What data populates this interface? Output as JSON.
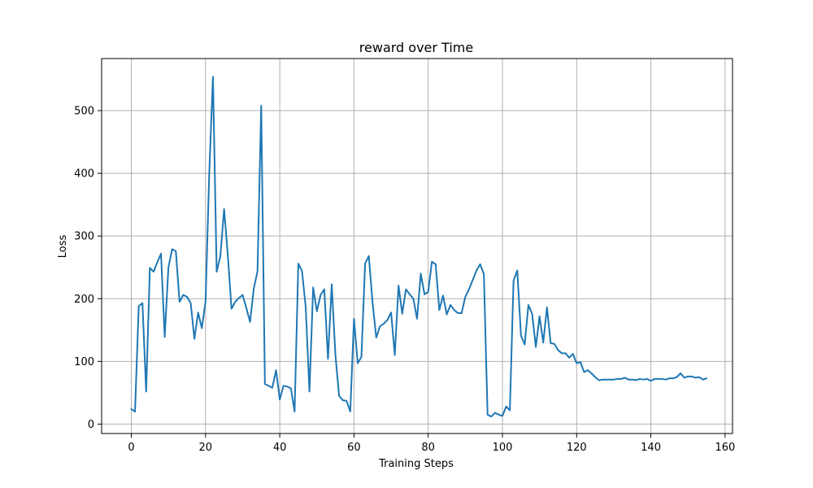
{
  "chart_data": {
    "type": "line",
    "title": "reward over Time",
    "xlabel": "Training Steps",
    "ylabel": "Loss",
    "xlim": [
      -8,
      162
    ],
    "ylim": [
      -15,
      583
    ],
    "x_ticks": [
      0,
      20,
      40,
      60,
      80,
      100,
      120,
      140,
      160
    ],
    "y_ticks": [
      0,
      100,
      200,
      300,
      400,
      500
    ],
    "grid": true,
    "legend": "none",
    "colors": {
      "line": "#1f77b4",
      "grid": "#b0b0b0",
      "axis": "#000000",
      "background": "#ffffff"
    },
    "series": [
      {
        "x": [
          0,
          1,
          2,
          3,
          4,
          5,
          6,
          7,
          8,
          9,
          10,
          11,
          12,
          13,
          14,
          15,
          16,
          17,
          18,
          19,
          20,
          21,
          22,
          23,
          24,
          25,
          26,
          27,
          28,
          29,
          30,
          31,
          32,
          33,
          34,
          35,
          36,
          37,
          38,
          39,
          40,
          41,
          42,
          43,
          44,
          45,
          46,
          47,
          48,
          49,
          50,
          51,
          52,
          53,
          54,
          55,
          56,
          57,
          58,
          59,
          60,
          61,
          62,
          63,
          64,
          65,
          66,
          67,
          68,
          69,
          70,
          71,
          72,
          73,
          74,
          75,
          76,
          77,
          78,
          79,
          80,
          81,
          82,
          83,
          84,
          85,
          86,
          87,
          88,
          89,
          90,
          91,
          92,
          93,
          94,
          95,
          96,
          97,
          98,
          99,
          100,
          101,
          102,
          103,
          104,
          105,
          106,
          107,
          108,
          109,
          110,
          111,
          112,
          113,
          114,
          115,
          116,
          117,
          118,
          119,
          120,
          121,
          122,
          123,
          124,
          125,
          126,
          127,
          128,
          129,
          130,
          131,
          132,
          133,
          134,
          135,
          136,
          137,
          138,
          139,
          140,
          141,
          142,
          143,
          144,
          145,
          146,
          147,
          148,
          149,
          150,
          151,
          152,
          153,
          154,
          155
        ],
        "values": [
          24,
          20,
          188,
          193,
          52,
          249,
          243,
          258,
          272,
          139,
          250,
          279,
          276,
          195,
          206,
          203,
          193,
          136,
          178,
          153,
          195,
          400,
          554,
          243,
          268,
          343,
          270,
          184,
          195,
          201,
          206,
          185,
          163,
          216,
          244,
          508,
          64,
          61,
          58,
          86,
          39,
          61,
          60,
          57,
          20,
          256,
          244,
          186,
          52,
          218,
          180,
          206,
          215,
          104,
          223,
          110,
          45,
          38,
          37,
          20,
          168,
          97,
          107,
          256,
          268,
          194,
          138,
          156,
          160,
          166,
          178,
          110,
          221,
          176,
          215,
          207,
          200,
          168,
          240,
          207,
          211,
          259,
          255,
          182,
          205,
          175,
          190,
          182,
          177,
          177,
          203,
          215,
          230,
          245,
          255,
          239,
          15,
          12,
          18,
          15,
          13,
          28,
          22,
          229,
          245,
          141,
          127,
          190,
          176,
          123,
          172,
          130,
          186,
          129,
          128,
          118,
          113,
          113,
          106,
          112,
          97,
          99,
          83,
          86,
          81,
          75,
          70,
          71,
          71,
          71,
          71,
          72,
          72,
          74,
          71,
          71,
          70,
          72,
          71,
          72,
          69,
          72,
          72,
          72,
          71,
          73,
          73,
          75,
          81,
          74,
          76,
          76,
          74,
          75,
          71,
          73
        ]
      }
    ]
  }
}
